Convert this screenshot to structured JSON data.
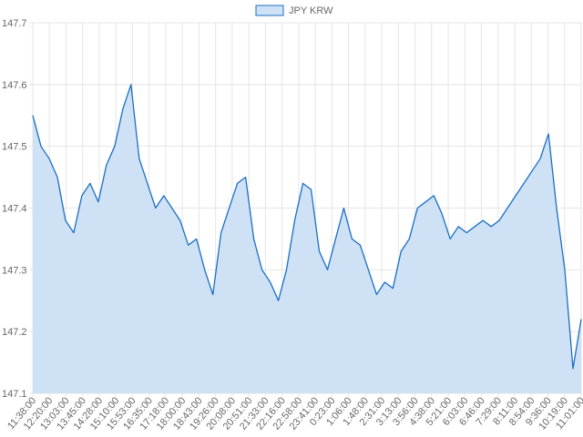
{
  "chart_data": {
    "type": "area",
    "title": "",
    "xlabel": "",
    "ylabel": "",
    "legend": {
      "position": "top-center",
      "entries": [
        "JPY KRW"
      ]
    },
    "grid": true,
    "colors": {
      "line": "#1a6fc4",
      "fill": "#cfe1f5",
      "grid": "#e5e5e5",
      "text": "#666666"
    },
    "ylim": [
      147.1,
      147.7
    ],
    "yticks": [
      "147.1",
      "147.2",
      "147.3",
      "147.4",
      "147.5",
      "147.6",
      "147.7"
    ],
    "x_tick_labels": [
      "11:38:00",
      "12:20:00",
      "13:03:00",
      "13:45:00",
      "14:28:00",
      "15:10:00",
      "15:53:00",
      "16:35:00",
      "17:18:00",
      "18:00:00",
      "18:43:00",
      "19:26:00",
      "20:08:00",
      "20:51:00",
      "21:33:00",
      "22:16:00",
      "22:58:00",
      "23:41:00",
      "0:23:00",
      "1:06:00",
      "1:48:00",
      "2:31:00",
      "3:13:00",
      "3:56:00",
      "4:38:00",
      "5:21:00",
      "6:03:00",
      "6:46:00",
      "7:29:00",
      "8:11:00",
      "8:54:00",
      "9:36:00",
      "10:19:00",
      "11:01:00"
    ],
    "series": [
      {
        "name": "JPY KRW",
        "x": [
          "11:38:00",
          "12:00:00",
          "12:20:00",
          "12:40:00",
          "13:03:00",
          "13:25:00",
          "13:45:00",
          "14:05:00",
          "14:28:00",
          "14:50:00",
          "15:10:00",
          "15:30:00",
          "15:53:00",
          "16:15:00",
          "16:35:00",
          "16:55:00",
          "17:18:00",
          "17:40:00",
          "18:00:00",
          "18:20:00",
          "18:43:00",
          "19:05:00",
          "19:26:00",
          "19:45:00",
          "20:08:00",
          "20:30:00",
          "20:51:00",
          "21:10:00",
          "21:33:00",
          "21:55:00",
          "22:16:00",
          "22:35:00",
          "22:58:00",
          "23:20:00",
          "23:41:00",
          "0:00:00",
          "0:23:00",
          "0:45:00",
          "1:06:00",
          "1:25:00",
          "1:48:00",
          "2:10:00",
          "2:31:00",
          "2:50:00",
          "3:13:00",
          "3:35:00",
          "3:56:00",
          "4:15:00",
          "4:38:00",
          "5:00:00",
          "5:21:00",
          "5:40:00",
          "6:03:00",
          "6:25:00",
          "6:46:00",
          "7:05:00",
          "7:29:00",
          "7:50:00",
          "8:11:00",
          "8:30:00",
          "8:54:00",
          "9:15:00",
          "9:36:00",
          "9:55:00",
          "10:19:00",
          "10:40:00",
          "11:01:00",
          "11:20:00"
        ],
        "values": [
          147.55,
          147.5,
          147.48,
          147.45,
          147.38,
          147.36,
          147.42,
          147.44,
          147.41,
          147.47,
          147.5,
          147.56,
          147.6,
          147.48,
          147.44,
          147.4,
          147.42,
          147.4,
          147.38,
          147.34,
          147.35,
          147.3,
          147.26,
          147.36,
          147.4,
          147.44,
          147.45,
          147.35,
          147.3,
          147.28,
          147.25,
          147.3,
          147.38,
          147.44,
          147.43,
          147.33,
          147.3,
          147.35,
          147.4,
          147.35,
          147.34,
          147.3,
          147.26,
          147.28,
          147.27,
          147.33,
          147.35,
          147.4,
          147.41,
          147.42,
          147.39,
          147.35,
          147.37,
          147.36,
          147.37,
          147.38,
          147.37,
          147.38,
          147.4,
          147.42,
          147.44,
          147.46,
          147.48,
          147.52,
          147.4,
          147.3,
          147.14,
          147.22
        ]
      }
    ]
  }
}
